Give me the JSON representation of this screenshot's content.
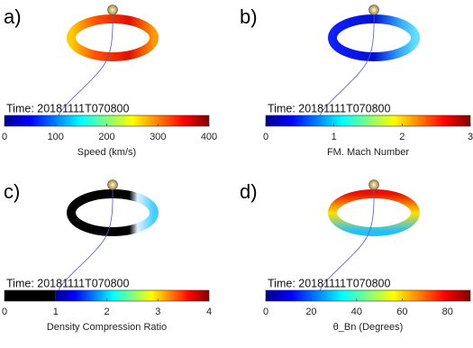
{
  "chart_data": [
    {
      "type": "colorbar",
      "panel_label": "a)",
      "annotation": "Time: 20181111T070800",
      "xlabel": "Speed (km/s)",
      "xlim": [
        0,
        400
      ],
      "xticks": [
        0,
        100,
        200,
        300,
        400
      ],
      "colormap": "jet"
    },
    {
      "type": "colorbar",
      "panel_label": "b)",
      "annotation": "Time: 20181111T070800",
      "xlabel": "FM. Mach Number",
      "xlim": [
        0,
        3
      ],
      "xticks": [
        0,
        1,
        2,
        3
      ],
      "colormap": "jet"
    },
    {
      "type": "colorbar",
      "panel_label": "c)",
      "annotation": "Time: 20181111T070800",
      "xlabel": "Density Compression Ratio",
      "xlim": [
        0,
        4
      ],
      "xticks": [
        0,
        1,
        2,
        3,
        4
      ],
      "colormap": "jet",
      "mask_below": 1,
      "mask_color": "#000000"
    },
    {
      "type": "colorbar",
      "panel_label": "d)",
      "annotation": "Time: 20181111T070800",
      "xlabel": "θ_Bn (Degrees)",
      "xlim": [
        0,
        90
      ],
      "xticks": [
        0,
        20,
        40,
        60,
        80
      ],
      "colormap": "jet"
    }
  ]
}
